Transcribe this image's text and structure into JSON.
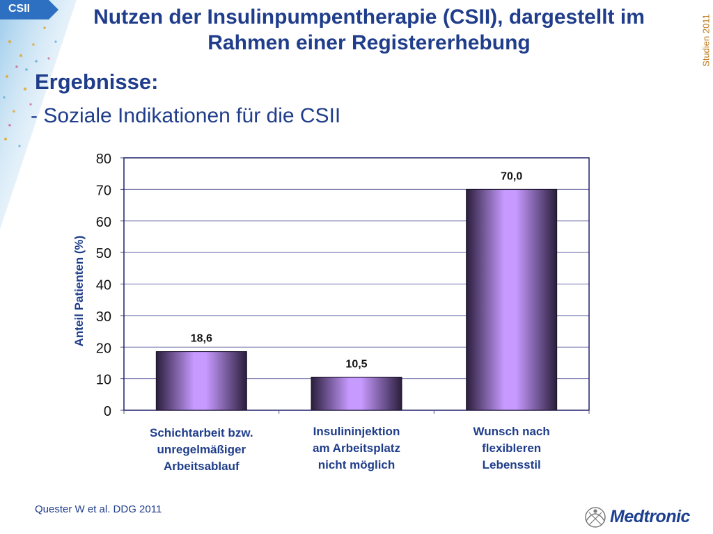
{
  "slide": {
    "tag": "CSII",
    "title_line1": "Nutzen der Insulinpumpentherapie (CSII), dargestellt im",
    "title_line2": "Rahmen einer Registererhebung",
    "side_label": "Studien 2011",
    "heading": "Ergebnisse:",
    "subheading": "- Soziale Indikationen für die CSII",
    "footer": "Quester W et al. DDG 2011",
    "logo": "Medtronic"
  },
  "colors": {
    "title": "#1f3d8a",
    "accent_orange": "#c07a1a",
    "bar_light": "#c79aff",
    "bar_dark": "#2a1e3c",
    "logo": "#1c3f8f"
  },
  "chart_data": {
    "type": "bar",
    "title": "",
    "ylabel": "Anteil Patienten (%)",
    "xlabel": "",
    "ylim": [
      0,
      80
    ],
    "yticks": [
      0,
      10,
      20,
      30,
      40,
      50,
      60,
      70,
      80
    ],
    "grid": true,
    "categories": [
      [
        "Schichtarbeit bzw.",
        "unregelmäßiger",
        "Arbeitsablauf"
      ],
      [
        "Insulininjektion",
        "am Arbeitsplatz",
        "nicht möglich"
      ],
      [
        "Wunsch nach",
        "flexibleren",
        "Lebensstil"
      ]
    ],
    "values": [
      18.6,
      10.5,
      70.0
    ],
    "data_labels": [
      "18,6",
      "10,5",
      "70,0"
    ]
  }
}
